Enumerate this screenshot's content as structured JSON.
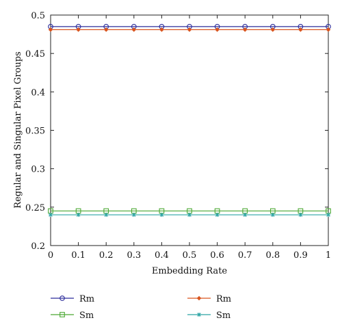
{
  "chart_data": {
    "type": "line",
    "title": "",
    "xlabel": "Embedding Rate",
    "ylabel": "Regular and Singular Pixel Groups",
    "xlim": [
      0,
      1
    ],
    "ylim": [
      0.2,
      0.5
    ],
    "xticks": [
      0,
      0.1,
      0.2,
      0.3,
      0.4,
      0.5,
      0.6,
      0.7,
      0.8,
      0.9,
      1
    ],
    "xtick_labels": [
      "0",
      "0.1",
      "0.2",
      "0.3",
      "0.4",
      "0.5",
      "0.6",
      "0.7",
      "0.8",
      "0.9",
      "1"
    ],
    "yticks": [
      0.2,
      0.25,
      0.3,
      0.35,
      0.4,
      0.45,
      0.5
    ],
    "ytick_labels": [
      "0.2",
      "0.25",
      "0.3",
      "0.35",
      "0.4",
      "0.45",
      "0.5"
    ],
    "grid": false,
    "legend_position": "bottom",
    "x": [
      0,
      0.1,
      0.2,
      0.3,
      0.4,
      0.5,
      0.6,
      0.7,
      0.8,
      0.9,
      1
    ],
    "series": [
      {
        "name": "Rm",
        "marker": "circle",
        "color": "#2b2b9a",
        "values": [
          0.485,
          0.485,
          0.485,
          0.485,
          0.485,
          0.485,
          0.485,
          0.485,
          0.485,
          0.485,
          0.485
        ]
      },
      {
        "name": "Rm",
        "marker": "diamond",
        "color": "#d9541e",
        "values": [
          0.481,
          0.481,
          0.481,
          0.481,
          0.481,
          0.481,
          0.481,
          0.481,
          0.481,
          0.481,
          0.481
        ]
      },
      {
        "name": "Sm",
        "marker": "square",
        "color": "#4aa832",
        "values": [
          0.245,
          0.245,
          0.245,
          0.245,
          0.245,
          0.245,
          0.245,
          0.245,
          0.245,
          0.245,
          0.245
        ]
      },
      {
        "name": "Sm",
        "marker": "star",
        "color": "#2aa3a3",
        "values": [
          0.24,
          0.24,
          0.24,
          0.24,
          0.24,
          0.24,
          0.24,
          0.24,
          0.24,
          0.24,
          0.24
        ]
      }
    ]
  }
}
